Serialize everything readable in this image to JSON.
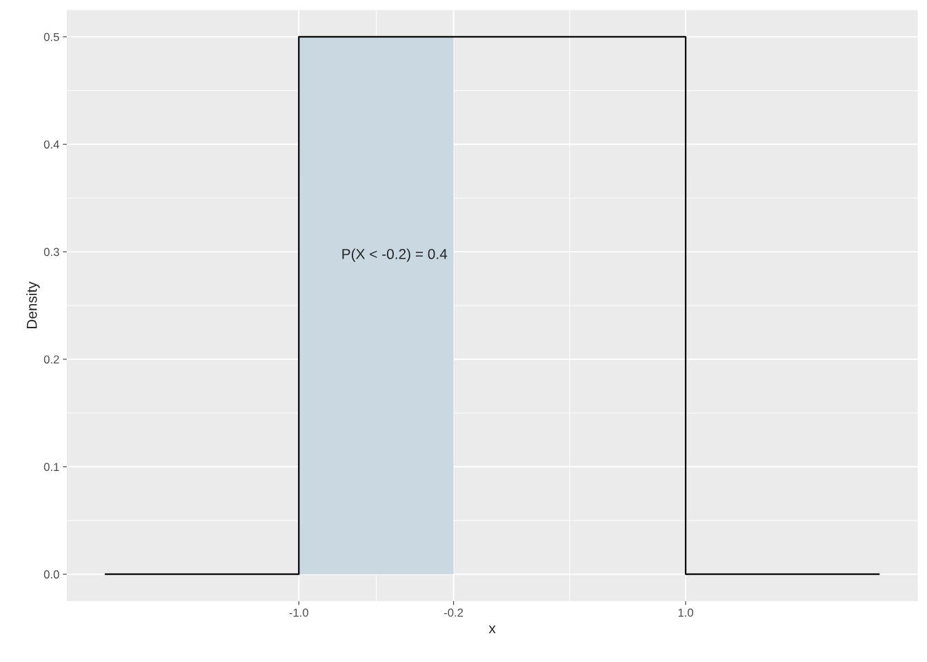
{
  "chart_data": {
    "type": "line",
    "xlabel": "x",
    "ylabel": "Density",
    "series": [
      {
        "type": "area",
        "color": "#cad8e1",
        "x": [
          -1.0,
          -0.2
        ],
        "values": [
          0.5,
          0.5
        ]
      },
      {
        "color": "#000000",
        "x": [
          -2.0,
          -1.0,
          -1.0,
          1.0,
          1.0,
          2.0
        ],
        "values": [
          0,
          0,
          0.5,
          0.5,
          0,
          0
        ]
      }
    ],
    "annotations": [
      "P(X < -0.2) = 0.4"
    ],
    "xlim": [
      -2.2,
      2.2
    ],
    "ylim": [
      -0.025,
      0.525
    ],
    "xticks": [
      {
        "value": -1.0,
        "label": "-1.0"
      },
      {
        "value": -0.2,
        "label": "-0.2"
      },
      {
        "value": 1.0,
        "label": "1.0"
      }
    ],
    "yticks": [
      {
        "value": 0,
        "label": "0.0"
      },
      0.1,
      0.2,
      0.3,
      0.4,
      0.5
    ],
    "grid": true,
    "legend": false
  }
}
